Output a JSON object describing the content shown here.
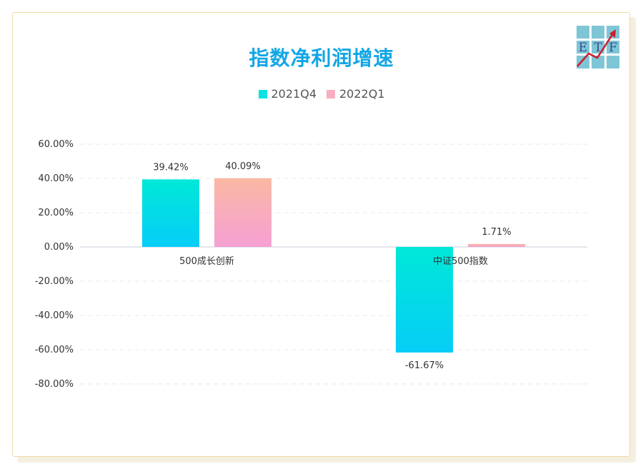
{
  "chart_data": {
    "type": "bar",
    "title": "指数净利润增速",
    "categories": [
      "500成长创新",
      "中证500指数"
    ],
    "series": [
      {
        "name": "2021Q4",
        "values": [
          39.42,
          -61.67
        ],
        "labels": [
          "39.42%",
          "-61.67%"
        ],
        "gradient": [
          "#00e8d8",
          "#06cdf7"
        ]
      },
      {
        "name": "2022Q1",
        "values": [
          40.09,
          1.71
        ],
        "labels": [
          "40.09%",
          "1.71%"
        ],
        "gradient": [
          "#fbb8a3",
          "#f5a0d4"
        ]
      }
    ],
    "yticks": [
      "60.00%",
      "40.00%",
      "20.00%",
      "0.00%",
      "-20.00%",
      "-40.00%",
      "-60.00%",
      "-80.00%"
    ],
    "ylim": [
      -80,
      60
    ],
    "grid": true,
    "legend_position": "top-center"
  },
  "legend_swatches": [
    "#0be3e0",
    "#f8aec0"
  ],
  "logo": {
    "letters": [
      "E",
      "T",
      "F"
    ],
    "icon": "etf-logo-icon"
  }
}
